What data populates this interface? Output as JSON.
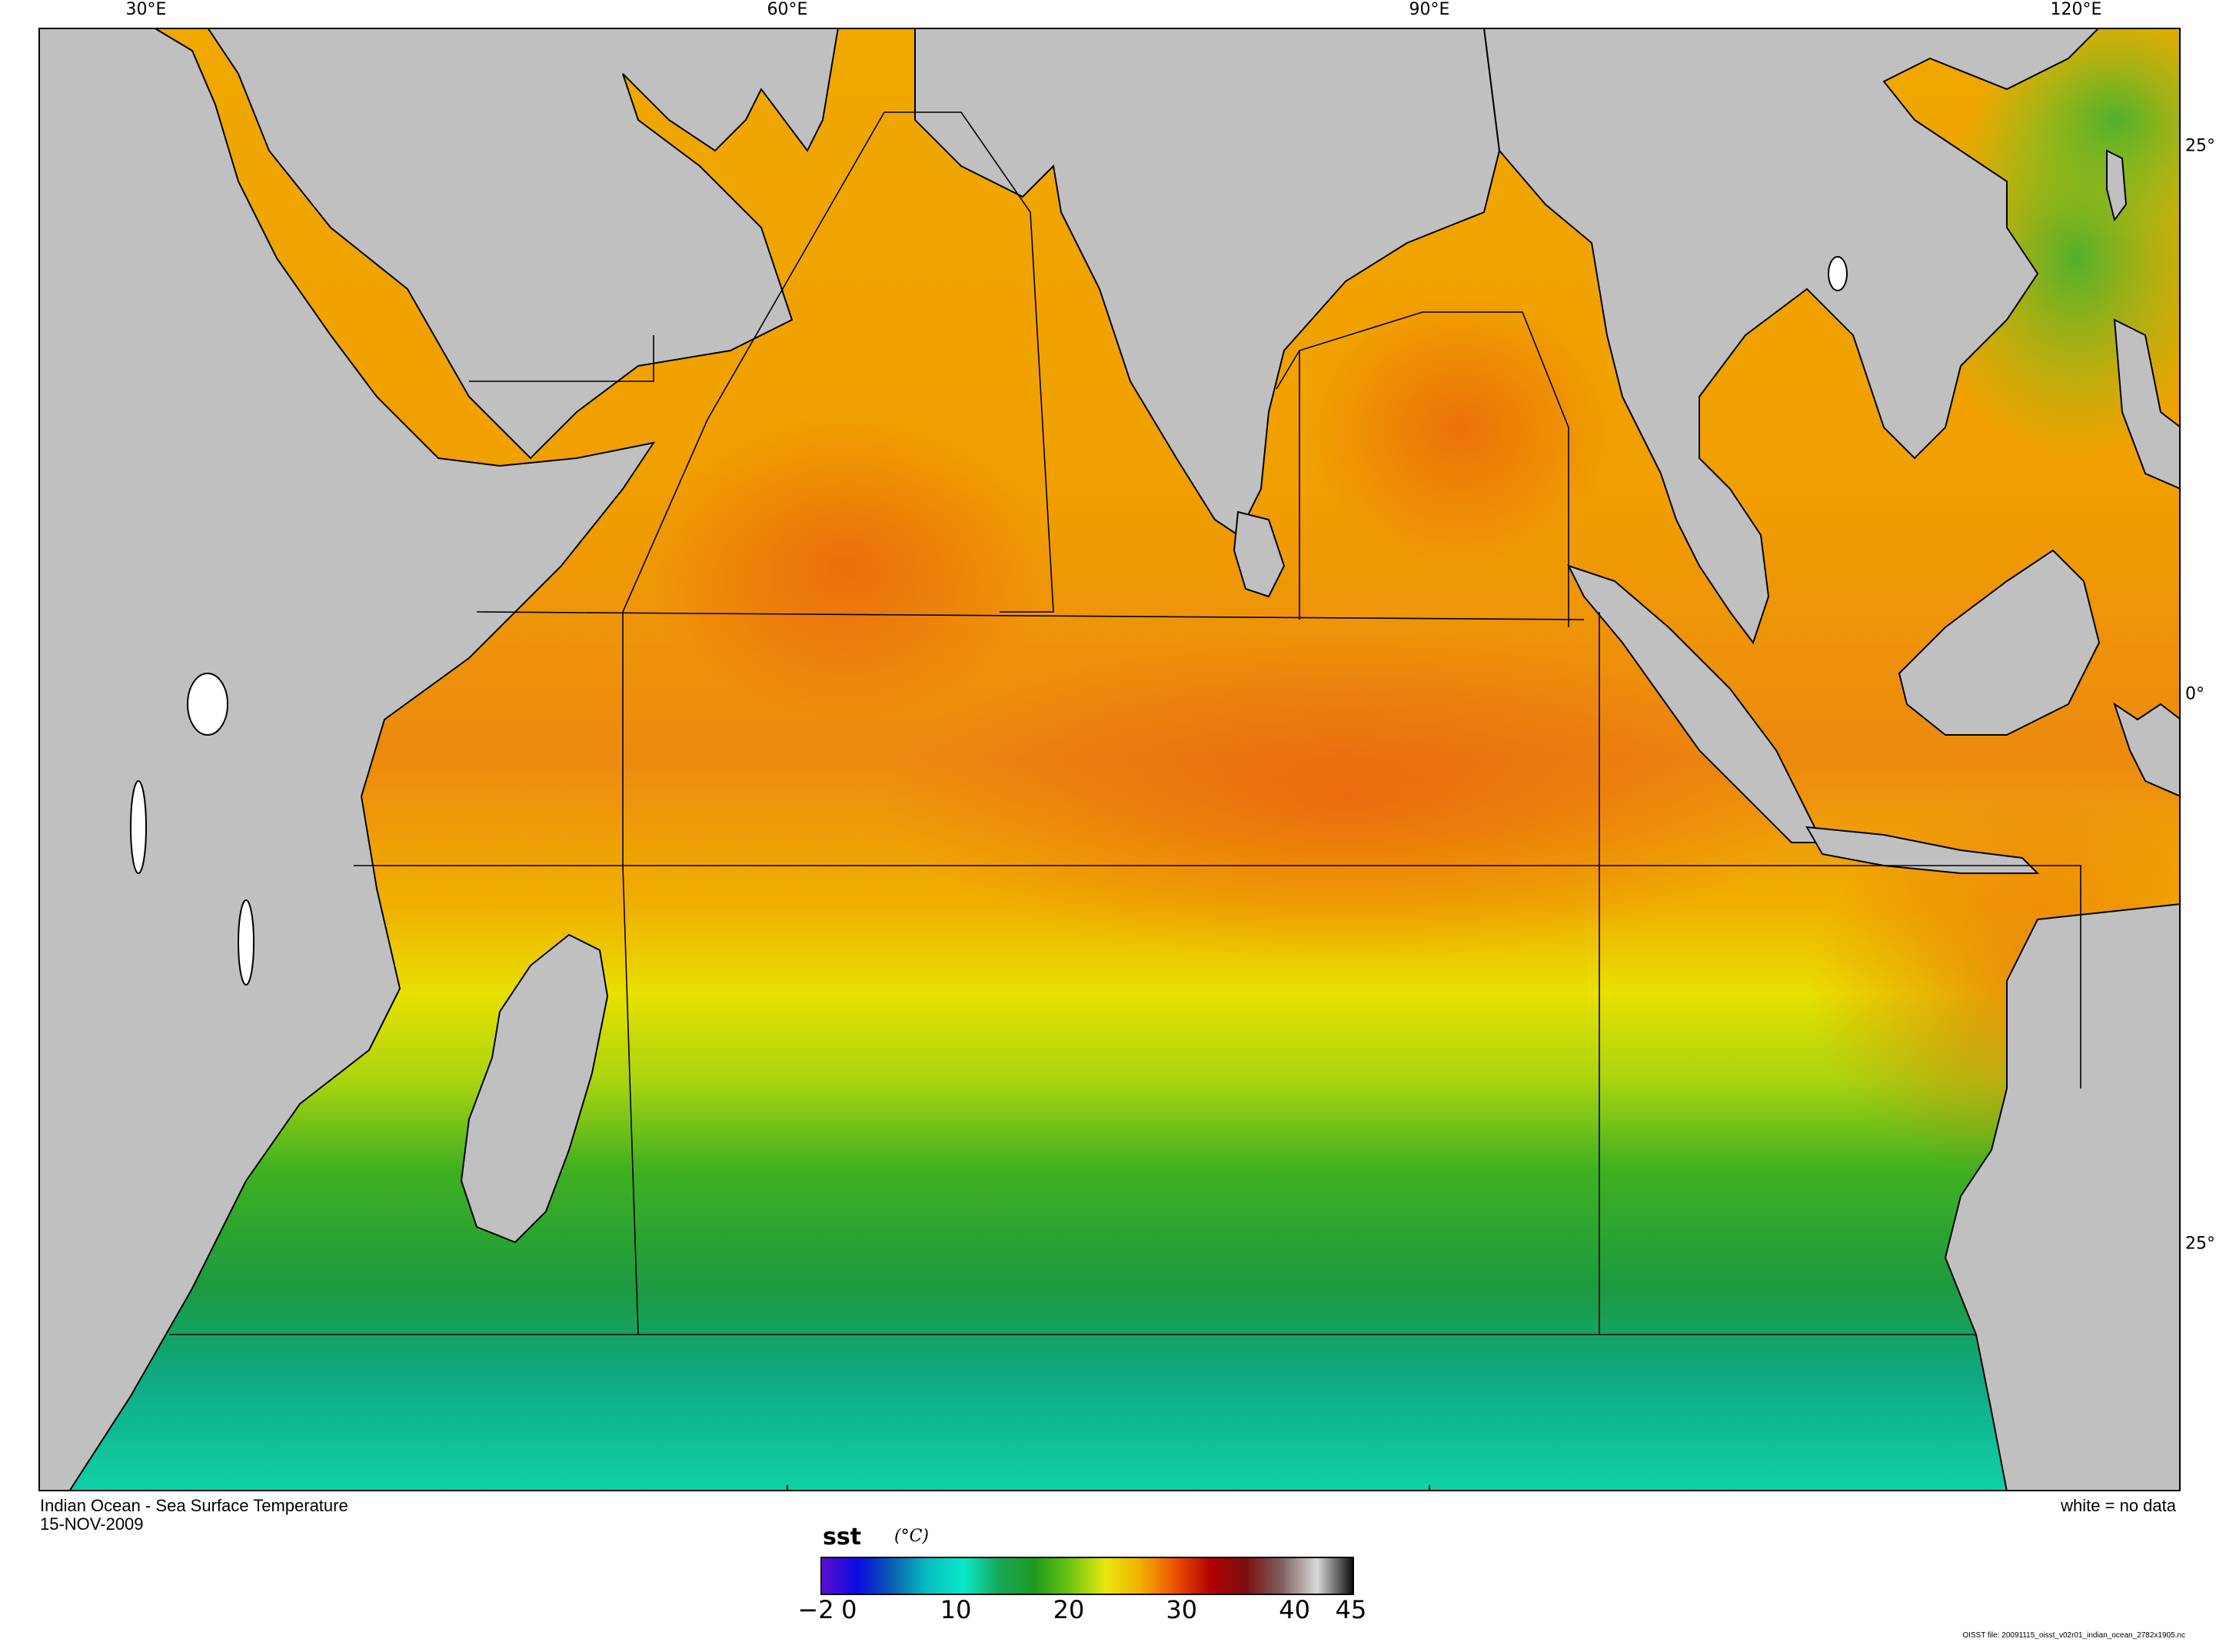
{
  "map": {
    "title": "Indian Ocean - Sea Surface Temperature",
    "date": "15-NOV-2009",
    "no_data_note": "white = no data",
    "file_note": "OISST file: 20091115_oisst_v02r01_indian_ocean_2782x1905.nc",
    "longitude_labels": [
      "30°E",
      "60°E",
      "90°E",
      "120°E"
    ],
    "latitude_labels": [
      "25°",
      "0°",
      "25°"
    ],
    "land_color": "#c0c0c0",
    "no_data_color": "#ffffff"
  },
  "colorbar": {
    "variable": "sst",
    "units": "(°C)",
    "ticks": [
      "−2",
      "0",
      "10",
      "20",
      "30",
      "40",
      "45"
    ],
    "range": [
      -2,
      45
    ],
    "colors": [
      "#5b0fd0",
      "#0a0ae0",
      "#0a60b0",
      "#07c0c0",
      "#08e8c8",
      "#17a85a",
      "#1f9a20",
      "#6ac410",
      "#e8e810",
      "#f2b000",
      "#ec5000",
      "#b00000",
      "#7a1010",
      "#806060",
      "#d8d8d8",
      "#101010"
    ]
  }
}
